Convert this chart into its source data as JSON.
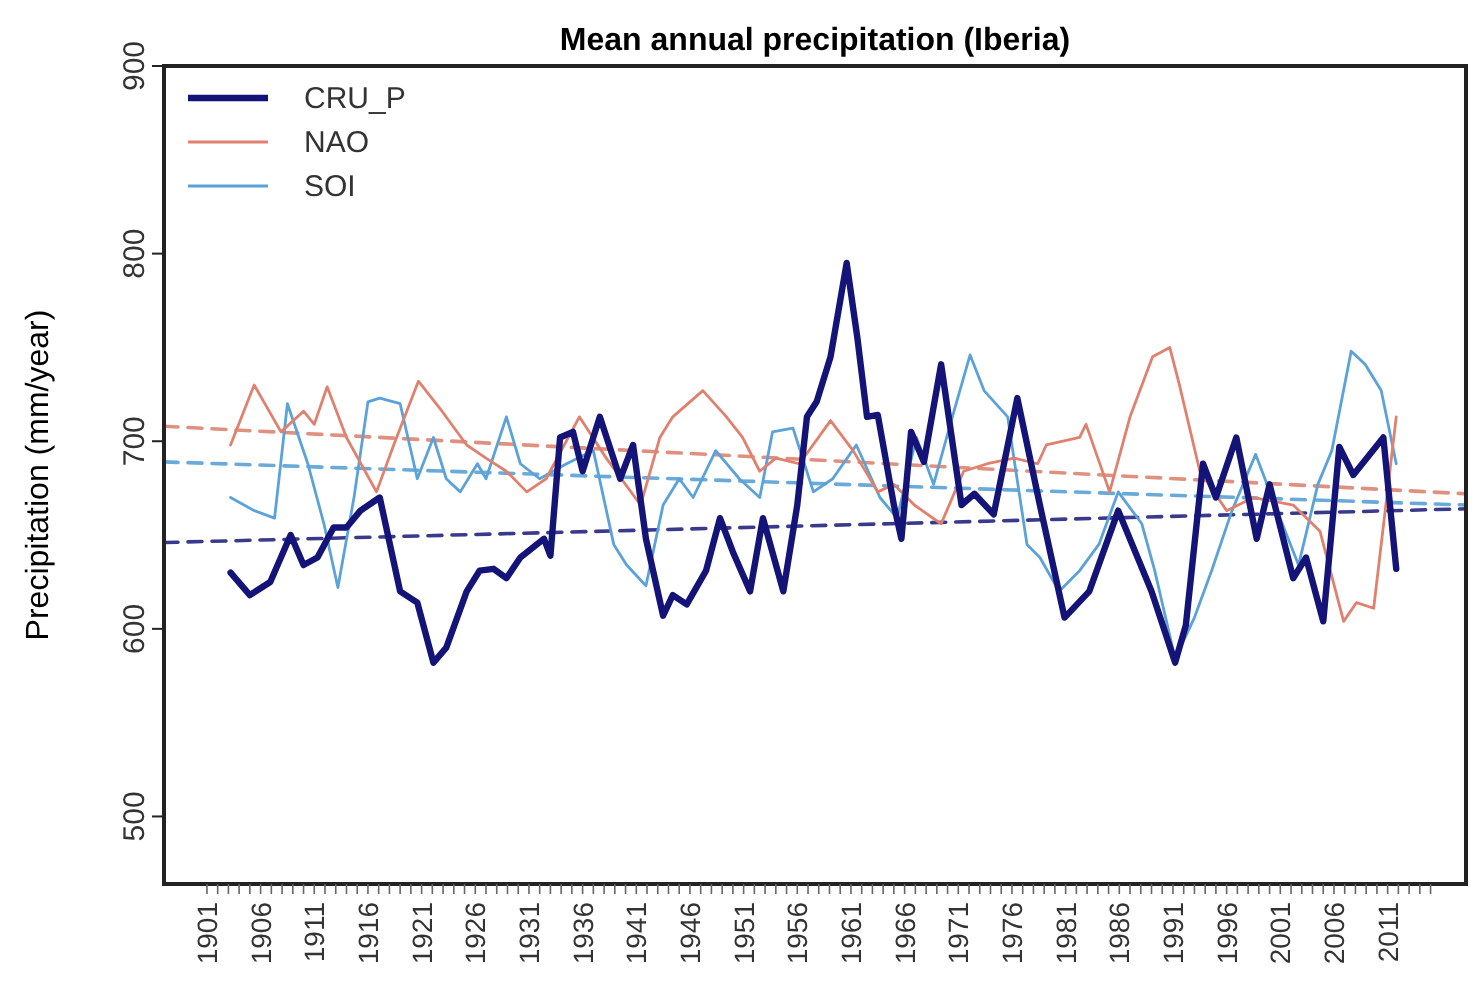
{
  "chart_data": {
    "type": "line",
    "title": "Mean annual precipitation (Iberia)",
    "ylabel": "Precipitation (mm/year)",
    "xlim": [
      1897,
      2018.3
    ],
    "ylim": [
      464,
      900
    ],
    "yticks": [
      500,
      600,
      700,
      800,
      900
    ],
    "xticks": [
      1901,
      {
        "value": 1902,
        "label": null
      },
      {
        "value": 1903,
        "label": null
      },
      {
        "value": 1904,
        "label": null
      },
      {
        "value": 1905,
        "label": null
      },
      1906,
      {
        "value": 1907,
        "label": null
      },
      {
        "value": 1908,
        "label": null
      },
      {
        "value": 1909,
        "label": null
      },
      {
        "value": 1910,
        "label": null
      },
      1911,
      {
        "value": 1912,
        "label": null
      },
      {
        "value": 1913,
        "label": null
      },
      {
        "value": 1914,
        "label": null
      },
      {
        "value": 1915,
        "label": null
      },
      1916,
      {
        "value": 1917,
        "label": null
      },
      {
        "value": 1918,
        "label": null
      },
      {
        "value": 1919,
        "label": null
      },
      {
        "value": 1920,
        "label": null
      },
      1921,
      {
        "value": 1922,
        "label": null
      },
      {
        "value": 1923,
        "label": null
      },
      {
        "value": 1924,
        "label": null
      },
      {
        "value": 1925,
        "label": null
      },
      1926,
      {
        "value": 1927,
        "label": null
      },
      {
        "value": 1928,
        "label": null
      },
      {
        "value": 1929,
        "label": null
      },
      {
        "value": 1930,
        "label": null
      },
      1931,
      {
        "value": 1932,
        "label": null
      },
      {
        "value": 1933,
        "label": null
      },
      {
        "value": 1934,
        "label": null
      },
      {
        "value": 1935,
        "label": null
      },
      1936,
      {
        "value": 1937,
        "label": null
      },
      {
        "value": 1938,
        "label": null
      },
      {
        "value": 1939,
        "label": null
      },
      {
        "value": 1940,
        "label": null
      },
      1941,
      {
        "value": 1942,
        "label": null
      },
      {
        "value": 1943,
        "label": null
      },
      {
        "value": 1944,
        "label": null
      },
      {
        "value": 1945,
        "label": null
      },
      1946,
      {
        "value": 1947,
        "label": null
      },
      {
        "value": 1948,
        "label": null
      },
      {
        "value": 1949,
        "label": null
      },
      {
        "value": 1950,
        "label": null
      },
      1951,
      {
        "value": 1952,
        "label": null
      },
      {
        "value": 1953,
        "label": null
      },
      {
        "value": 1954,
        "label": null
      },
      {
        "value": 1955,
        "label": null
      },
      1956,
      {
        "value": 1957,
        "label": null
      },
      {
        "value": 1958,
        "label": null
      },
      {
        "value": 1959,
        "label": null
      },
      {
        "value": 1960,
        "label": null
      },
      1961,
      {
        "value": 1962,
        "label": null
      },
      {
        "value": 1963,
        "label": null
      },
      {
        "value": 1964,
        "label": null
      },
      {
        "value": 1965,
        "label": null
      },
      1966,
      {
        "value": 1967,
        "label": null
      },
      {
        "value": 1968,
        "label": null
      },
      {
        "value": 1969,
        "label": null
      },
      {
        "value": 1970,
        "label": null
      },
      1971,
      {
        "value": 1972,
        "label": null
      },
      {
        "value": 1973,
        "label": null
      },
      {
        "value": 1974,
        "label": null
      },
      {
        "value": 1975,
        "label": null
      },
      1976,
      {
        "value": 1977,
        "label": null
      },
      {
        "value": 1978,
        "label": null
      },
      {
        "value": 1979,
        "label": null
      },
      {
        "value": 1980,
        "label": null
      },
      1981,
      {
        "value": 1982,
        "label": null
      },
      {
        "value": 1983,
        "label": null
      },
      {
        "value": 1984,
        "label": null
      },
      {
        "value": 1985,
        "label": null
      },
      1986,
      {
        "value": 1987,
        "label": null
      },
      {
        "value": 1988,
        "label": null
      },
      {
        "value": 1989,
        "label": null
      },
      {
        "value": 1990,
        "label": null
      },
      1991,
      {
        "value": 1992,
        "label": null
      },
      {
        "value": 1993,
        "label": null
      },
      {
        "value": 1994,
        "label": null
      },
      {
        "value": 1995,
        "label": null
      },
      1996,
      {
        "value": 1997,
        "label": null
      },
      {
        "value": 1998,
        "label": null
      },
      {
        "value": 1999,
        "label": null
      },
      {
        "value": 2000,
        "label": null
      },
      2001,
      {
        "value": 2002,
        "label": null
      },
      {
        "value": 2003,
        "label": null
      },
      {
        "value": 2004,
        "label": null
      },
      {
        "value": 2005,
        "label": null
      },
      2006,
      {
        "value": 2007,
        "label": null
      },
      {
        "value": 2008,
        "label": null
      },
      {
        "value": 2009,
        "label": null
      },
      {
        "value": 2010,
        "label": null
      },
      2011,
      {
        "value": 2012,
        "label": null
      },
      {
        "value": 2013,
        "label": null
      },
      {
        "value": 2014,
        "label": null
      },
      {
        "value": 2015,
        "label": null
      }
    ],
    "legend": "top left",
    "grid": false,
    "marker": "none",
    "line_style": "solid",
    "series": [
      {
        "name": "CRU_P",
        "color": "#141478",
        "x": [
          1903.2,
          1905,
          1906.9,
          1908.8,
          1910,
          1911.3,
          1912.8,
          1914,
          1915.3,
          1917.1,
          1919,
          1920.6,
          1922.1,
          1923.3,
          1925.2,
          1926.4,
          1927.7,
          1928.9,
          1930.2,
          1932.4,
          1933,
          1933.9,
          1935.1,
          1936,
          1937.6,
          1939.5,
          1940.7,
          1941.9,
          1943.5,
          1944.4,
          1945.7,
          1947.5,
          1948.8,
          1950,
          1951.6,
          1952.8,
          1954.7,
          1956,
          1956.9,
          1957.8,
          1959.1,
          1960.6,
          1961.6,
          1962.5,
          1963.5,
          1965,
          1965.7,
          1966.6,
          1967.8,
          1969.4,
          1971.3,
          1972.5,
          1974.3,
          1976.5,
          1978.6,
          1980.9,
          1983.2,
          1985.9,
          1989,
          1991.2,
          1992.2,
          1993.8,
          1995,
          1996.9,
          1998.8,
          2000,
          2002.2,
          2003.4,
          2005,
          2006.5,
          2007.8,
          2010.6,
          2011.8
        ],
        "values": [
          630,
          618,
          625,
          650,
          634,
          638,
          654,
          654,
          663,
          670,
          620,
          614,
          582,
          590,
          620,
          631,
          632,
          627,
          638,
          648,
          639,
          702,
          705,
          684,
          713,
          680,
          698,
          648,
          607,
          618,
          613,
          631,
          659,
          641,
          620,
          659,
          620,
          666,
          713,
          721,
          745,
          795,
          755,
          713,
          714,
          666,
          648,
          705,
          689,
          741,
          666,
          672,
          661,
          723,
          666,
          606,
          620,
          663,
          620,
          582,
          602,
          688,
          670,
          702,
          648,
          677,
          627,
          638,
          604,
          697,
          682,
          702,
          632
        ]
      },
      {
        "name": "NAO",
        "color": "#e0806e",
        "x": [
          1903.2,
          1905.4,
          1907.9,
          1910,
          1911,
          1912.2,
          1914,
          1916.8,
          1918.4,
          1920.7,
          1922.9,
          1925.2,
          1927,
          1928.9,
          1930.8,
          1932.6,
          1935.7,
          1938.2,
          1941.4,
          1943.2,
          1944.4,
          1947.2,
          1949.4,
          1950.9,
          1952.5,
          1954,
          1956.2,
          1959.1,
          1961.2,
          1963.5,
          1965,
          1966.9,
          1969.4,
          1971.5,
          1973.7,
          1976.2,
          1978.4,
          1979.2,
          1982.3,
          1982.9,
          1985.1,
          1987,
          1989.1,
          1990.7,
          1991.6,
          1993.5,
          1996,
          1998.5,
          2002.2,
          2004.7,
          2006.9,
          2008.1,
          2009.7,
          2011.8
        ],
        "values": [
          698,
          730,
          705,
          716,
          709,
          729,
          702,
          673,
          698,
          732,
          716,
          698,
          691,
          684,
          673,
          680,
          713,
          691,
          666,
          702,
          713,
          727,
          713,
          702,
          684,
          691,
          688,
          711,
          695,
          673,
          677,
          666,
          656,
          684,
          688,
          691,
          688,
          698,
          702,
          709,
          673,
          713,
          745,
          750,
          730,
          684,
          663,
          670,
          666,
          652,
          604,
          614,
          611,
          713
        ]
      },
      {
        "name": "SOI",
        "color": "#5aa2d8",
        "x": [
          1903.2,
          1905.4,
          1907.3,
          1908.5,
          1910.4,
          1911.9,
          1913.2,
          1914.7,
          1916,
          1917.1,
          1919,
          1920.6,
          1922.1,
          1923.3,
          1924.6,
          1926.2,
          1927,
          1928.9,
          1930.2,
          1932,
          1934.5,
          1937,
          1938.9,
          1940.1,
          1941.9,
          1943.5,
          1945,
          1946.3,
          1948.4,
          1950.6,
          1952.5,
          1953.7,
          1955.6,
          1957.5,
          1959.3,
          1961.5,
          1963.7,
          1965.3,
          1967.1,
          1968.7,
          1970.6,
          1972.1,
          1973.4,
          1975.6,
          1977.4,
          1978.6,
          1980.4,
          1982.3,
          1984.1,
          1985.9,
          1988.1,
          1989.3,
          1991.2,
          1993,
          1994.6,
          1996.5,
          1998.7,
          2000.5,
          2002.7,
          2004.5,
          2005.8,
          2007.6,
          2008.9,
          2010.4,
          2011.8
        ],
        "values": [
          670,
          663,
          659,
          720,
          688,
          656,
          622,
          670,
          721,
          723,
          720,
          680,
          702,
          680,
          673,
          688,
          680,
          713,
          688,
          680,
          688,
          695,
          645,
          634,
          623,
          666,
          680,
          670,
          695,
          680,
          670,
          705,
          707,
          673,
          680,
          698,
          670,
          659,
          702,
          677,
          716,
          746,
          727,
          713,
          645,
          638,
          620,
          631,
          645,
          673,
          656,
          631,
          584,
          606,
          631,
          663,
          693,
          666,
          634,
          677,
          695,
          748,
          741,
          727,
          688
        ]
      },
      {
        "type": "line",
        "color": "#3a3a8c",
        "line_style": "dashed",
        "x": [
          1897,
          2018.3
        ],
        "values": [
          646,
          664
        ]
      },
      {
        "type": "line",
        "color": "#e0907e",
        "line_style": "dashed",
        "x": [
          1897,
          2018.3
        ],
        "values": [
          708,
          672
        ]
      },
      {
        "type": "line",
        "color": "#6aaad8",
        "line_style": "dashed",
        "x": [
          1897,
          2018.3
        ],
        "values": [
          689,
          666
        ]
      }
    ]
  }
}
